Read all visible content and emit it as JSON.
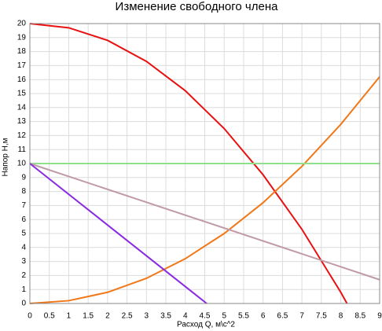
{
  "chart_data": {
    "type": "line",
    "title": "Изменение свободного члена",
    "x_label": "Расход Q, м\\с^2",
    "y_label": "Напор H,м",
    "series": [
      {
        "color": "#e81010",
        "x": [
          0,
          1,
          2,
          3,
          4,
          5,
          6,
          7,
          8,
          8.16
        ],
        "values": [
          20,
          19.7,
          18.8,
          17.3,
          15.2,
          12.5,
          9.2,
          5.3,
          0.8,
          0
        ]
      },
      {
        "color": "#f07818",
        "x": [
          0,
          1,
          2,
          3,
          4,
          5,
          6,
          7,
          8,
          9
        ],
        "values": [
          0,
          0.2,
          0.8,
          1.8,
          3.2,
          5,
          7.2,
          9.8,
          12.8,
          16.2
        ]
      },
      {
        "color": "#90e090",
        "x": [
          0,
          9
        ],
        "values": [
          10,
          10
        ]
      },
      {
        "color": "#c09aa8",
        "x": [
          0,
          9
        ],
        "values": [
          10,
          1.7
        ]
      },
      {
        "color": "#8a2be2",
        "x": [
          0,
          4.55
        ],
        "values": [
          10,
          0
        ]
      }
    ],
    "xlim": [
      0,
      9
    ],
    "xticks": [
      0,
      0.5,
      1,
      1.5,
      2,
      2.5,
      3,
      3.5,
      4,
      4.5,
      5,
      5.5,
      6,
      6.5,
      7,
      7.5,
      8,
      8.5,
      9
    ],
    "ylim": [
      0,
      20
    ],
    "yticks": [
      0,
      1,
      2,
      3,
      4,
      5,
      6,
      7,
      8,
      9,
      10,
      11,
      12,
      13,
      14,
      15,
      16,
      17,
      18,
      19,
      20
    ],
    "grid": true
  }
}
